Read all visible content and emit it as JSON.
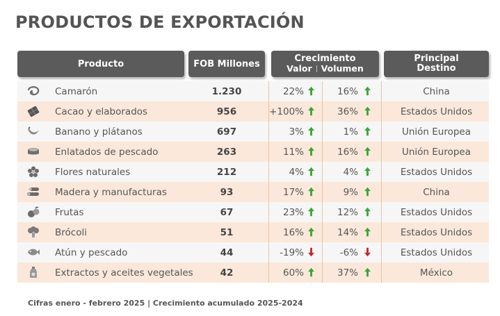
{
  "title": "PRODUCTOS DE EXPORTACIÓN",
  "headers": {
    "producto": "Producto",
    "fob": "FOB Millones",
    "crecimiento": "Crecimiento",
    "valor": "Valor",
    "volumen": "Volumen",
    "destino_line1": "Principal",
    "destino_line2": "Destino"
  },
  "colors": {
    "header_bg": "#5b5b5b",
    "row_odd": "#f6f6f6",
    "row_even": "#fbe8da",
    "arrow_up": "#3aa535",
    "arrow_down": "#c0272d"
  },
  "rows": [
    {
      "icon": "shrimp-icon",
      "producto": "Camarón",
      "fob": "1.230",
      "valor": "22%",
      "valor_dir": "up",
      "volumen": "16%",
      "volumen_dir": "up",
      "destino": "China"
    },
    {
      "icon": "cacao-bar-icon",
      "producto": "Cacao y elaborados",
      "fob": "956",
      "valor": "+100%",
      "valor_dir": "up",
      "volumen": "36%",
      "volumen_dir": "up",
      "destino": "Estados Unidos"
    },
    {
      "icon": "banana-icon",
      "producto": "Banano y plátanos",
      "fob": "697",
      "valor": "3%",
      "valor_dir": "up",
      "volumen": "1%",
      "volumen_dir": "up",
      "destino": "Unión Europea"
    },
    {
      "icon": "tin-can-icon",
      "producto": "Enlatados de pescado",
      "fob": "263",
      "valor": "11%",
      "valor_dir": "up",
      "volumen": "16%",
      "volumen_dir": "up",
      "destino": "Unión Europea"
    },
    {
      "icon": "flower-icon",
      "producto": "Flores naturales",
      "fob": "212",
      "valor": "4%",
      "valor_dir": "up",
      "volumen": "4%",
      "volumen_dir": "up",
      "destino": "Estados Unidos"
    },
    {
      "icon": "wood-logs-icon",
      "producto": "Madera y manufacturas",
      "fob": "93",
      "valor": "17%",
      "valor_dir": "up",
      "volumen": "9%",
      "volumen_dir": "up",
      "destino": "China"
    },
    {
      "icon": "fruits-icon",
      "producto": "Frutas",
      "fob": "67",
      "valor": "23%",
      "valor_dir": "up",
      "volumen": "12%",
      "volumen_dir": "up",
      "destino": "Estados Unidos"
    },
    {
      "icon": "broccoli-icon",
      "producto": "Brócoli",
      "fob": "51",
      "valor": "16%",
      "valor_dir": "up",
      "volumen": "14%",
      "volumen_dir": "up",
      "destino": "Estados Unidos"
    },
    {
      "icon": "fish-icon",
      "producto": "Atún y pescado",
      "fob": "44",
      "valor": "-19%",
      "valor_dir": "down",
      "volumen": "-6%",
      "volumen_dir": "down",
      "destino": "Estados Unidos"
    },
    {
      "icon": "oil-bottle-icon",
      "producto": "Extractos y aceites vegetales",
      "fob": "42",
      "valor": "60%",
      "valor_dir": "up",
      "volumen": "37%",
      "volumen_dir": "up",
      "destino": "México"
    }
  ],
  "footer": "Cifras enero - febrero 2025 | Crecimiento acumulado 2025-2024"
}
